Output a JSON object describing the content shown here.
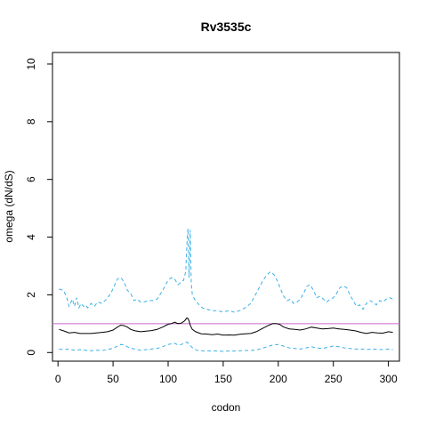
{
  "chart_data": {
    "type": "line",
    "title": "Rv3535c",
    "xlabel": "codon",
    "ylabel": "omega (dN/dS)",
    "xlim": [
      -5,
      310
    ],
    "ylim": [
      -0.3,
      10.4
    ],
    "xticks": [
      "0",
      "50",
      "100",
      "150",
      "200",
      "250",
      "300"
    ],
    "yticks": [
      "0",
      "2",
      "4",
      "6",
      "8",
      "10"
    ],
    "reference_line": {
      "y": 1,
      "color": "#cc66cc"
    },
    "grid": false,
    "legend": "none",
    "series": [
      {
        "role": "upper",
        "style": "dashed",
        "color": "#3db0e6",
        "x": [
          1,
          5,
          8,
          10,
          13,
          15,
          17,
          19,
          21,
          23,
          25,
          27,
          30,
          33,
          36,
          40,
          44,
          48,
          51,
          54,
          57,
          60,
          63,
          66,
          69,
          72,
          75,
          78,
          82,
          86,
          90,
          95,
          100,
          103,
          106,
          109,
          112,
          114,
          116,
          117,
          118,
          119,
          120,
          121,
          122,
          124,
          127,
          131,
          135,
          140,
          145,
          150,
          155,
          160,
          165,
          170,
          175,
          180,
          184,
          187,
          190,
          193,
          196,
          199,
          202,
          205,
          208,
          211,
          214,
          217,
          220,
          223,
          226,
          229,
          232,
          235,
          238,
          241,
          244,
          247,
          250,
          253,
          256,
          259,
          262,
          265,
          268,
          271,
          274,
          277,
          280,
          283,
          286,
          289,
          292,
          295,
          298,
          301,
          304
        ],
        "y": [
          2.2,
          2.15,
          1.9,
          1.6,
          1.85,
          1.6,
          1.9,
          1.55,
          1.7,
          1.6,
          1.65,
          1.55,
          1.7,
          1.6,
          1.75,
          1.7,
          1.85,
          2.05,
          2.3,
          2.55,
          2.6,
          2.45,
          2.15,
          2.05,
          1.8,
          1.85,
          1.75,
          1.75,
          1.8,
          1.8,
          1.85,
          2.15,
          2.5,
          2.6,
          2.55,
          2.35,
          2.45,
          2.5,
          2.8,
          3.7,
          4.3,
          2.6,
          4.25,
          2.4,
          2.0,
          1.85,
          1.7,
          1.55,
          1.5,
          1.45,
          1.45,
          1.4,
          1.45,
          1.4,
          1.45,
          1.55,
          1.7,
          2.05,
          2.35,
          2.55,
          2.7,
          2.8,
          2.7,
          2.5,
          2.2,
          1.95,
          1.8,
          1.85,
          1.7,
          1.75,
          1.85,
          2.05,
          2.3,
          2.35,
          2.15,
          1.9,
          1.95,
          1.85,
          1.75,
          1.85,
          1.9,
          2.05,
          2.25,
          2.3,
          2.25,
          2.0,
          1.8,
          1.6,
          1.65,
          1.5,
          1.7,
          1.8,
          1.75,
          1.65,
          1.8,
          1.75,
          1.85,
          1.9,
          1.85
        ]
      },
      {
        "role": "estimate",
        "style": "solid",
        "color": "#000000",
        "x": [
          1,
          5,
          10,
          15,
          20,
          25,
          30,
          35,
          40,
          45,
          50,
          54,
          57,
          60,
          63,
          66,
          70,
          75,
          80,
          85,
          90,
          95,
          100,
          103,
          106,
          109,
          112,
          115,
          117,
          118,
          119,
          120,
          122,
          125,
          130,
          135,
          140,
          145,
          150,
          155,
          160,
          165,
          170,
          175,
          180,
          185,
          190,
          195,
          198,
          201,
          205,
          210,
          215,
          220,
          225,
          230,
          235,
          240,
          245,
          250,
          255,
          260,
          265,
          270,
          275,
          280,
          285,
          290,
          295,
          300,
          304
        ],
        "y": [
          0.8,
          0.75,
          0.68,
          0.7,
          0.66,
          0.66,
          0.66,
          0.68,
          0.7,
          0.72,
          0.78,
          0.88,
          0.95,
          0.93,
          0.88,
          0.8,
          0.75,
          0.72,
          0.74,
          0.76,
          0.8,
          0.88,
          0.98,
          1.0,
          1.05,
          1.0,
          1.02,
          1.1,
          1.2,
          1.18,
          1.1,
          0.95,
          0.8,
          0.72,
          0.65,
          0.64,
          0.62,
          0.64,
          0.6,
          0.61,
          0.6,
          0.63,
          0.65,
          0.66,
          0.72,
          0.82,
          0.92,
          1.0,
          1.0,
          0.98,
          0.88,
          0.82,
          0.8,
          0.78,
          0.82,
          0.88,
          0.85,
          0.82,
          0.83,
          0.85,
          0.82,
          0.8,
          0.78,
          0.75,
          0.7,
          0.66,
          0.7,
          0.68,
          0.67,
          0.72,
          0.7
        ]
      },
      {
        "role": "lower",
        "style": "dashed",
        "color": "#3db0e6",
        "x": [
          1,
          5,
          10,
          15,
          20,
          25,
          30,
          35,
          40,
          45,
          50,
          54,
          57,
          60,
          63,
          66,
          70,
          75,
          80,
          85,
          90,
          95,
          100,
          103,
          106,
          109,
          112,
          115,
          117,
          119,
          121,
          123,
          126,
          130,
          135,
          140,
          145,
          150,
          155,
          160,
          165,
          170,
          175,
          180,
          185,
          190,
          195,
          200,
          205,
          210,
          215,
          220,
          225,
          230,
          235,
          240,
          245,
          250,
          255,
          260,
          265,
          270,
          275,
          280,
          285,
          290,
          295,
          300,
          304
        ],
        "y": [
          0.12,
          0.1,
          0.12,
          0.08,
          0.1,
          0.08,
          0.06,
          0.08,
          0.07,
          0.1,
          0.15,
          0.22,
          0.28,
          0.26,
          0.2,
          0.15,
          0.12,
          0.08,
          0.1,
          0.12,
          0.14,
          0.2,
          0.28,
          0.3,
          0.32,
          0.26,
          0.28,
          0.33,
          0.36,
          0.3,
          0.2,
          0.14,
          0.08,
          0.06,
          0.05,
          0.06,
          0.05,
          0.04,
          0.05,
          0.05,
          0.06,
          0.07,
          0.07,
          0.09,
          0.14,
          0.2,
          0.26,
          0.28,
          0.22,
          0.16,
          0.14,
          0.12,
          0.16,
          0.2,
          0.16,
          0.14,
          0.18,
          0.22,
          0.2,
          0.16,
          0.14,
          0.12,
          0.12,
          0.1,
          0.12,
          0.11,
          0.1,
          0.12,
          0.1
        ]
      }
    ]
  }
}
